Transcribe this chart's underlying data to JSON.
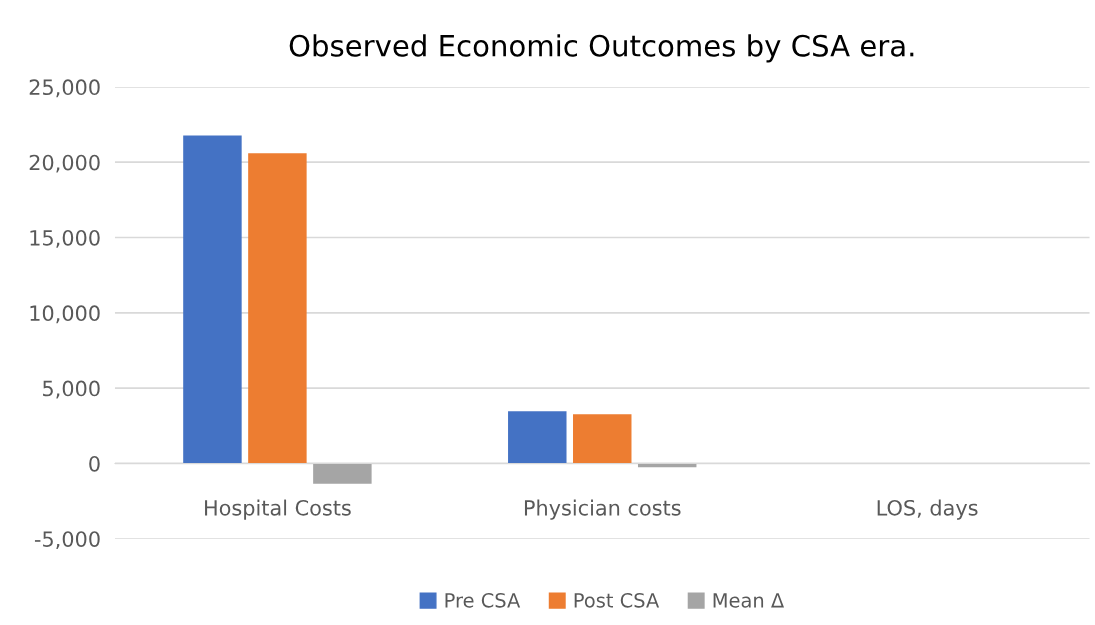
{
  "chart_data": {
    "type": "bar",
    "title": "Observed Economic Outcomes by CSA era.",
    "categories": [
      "Hospital Costs",
      "Physician costs",
      "LOS, days"
    ],
    "series": [
      {
        "name": "Pre CSA",
        "color": "#4472c4",
        "values": [
          21780,
          3460,
          0
        ]
      },
      {
        "name": "Post CSA",
        "color": "#ed7d31",
        "values": [
          20590,
          3260,
          0
        ]
      },
      {
        "name": "Mean Δ",
        "color": "#a5a5a5",
        "values": [
          -1350,
          -250,
          0
        ]
      }
    ],
    "ylim": [
      -5000,
      25000
    ],
    "yticks": [
      {
        "value": -5000,
        "label": "-5,000"
      },
      0,
      {
        "value": 5000,
        "label": "5,000"
      },
      {
        "value": 10000,
        "label": "10,000"
      },
      {
        "value": 15000,
        "label": "15,000"
      },
      {
        "value": 20000,
        "label": "20,000"
      },
      {
        "value": 25000,
        "label": "25,000"
      }
    ],
    "grid": "y",
    "legend": "bottom"
  }
}
